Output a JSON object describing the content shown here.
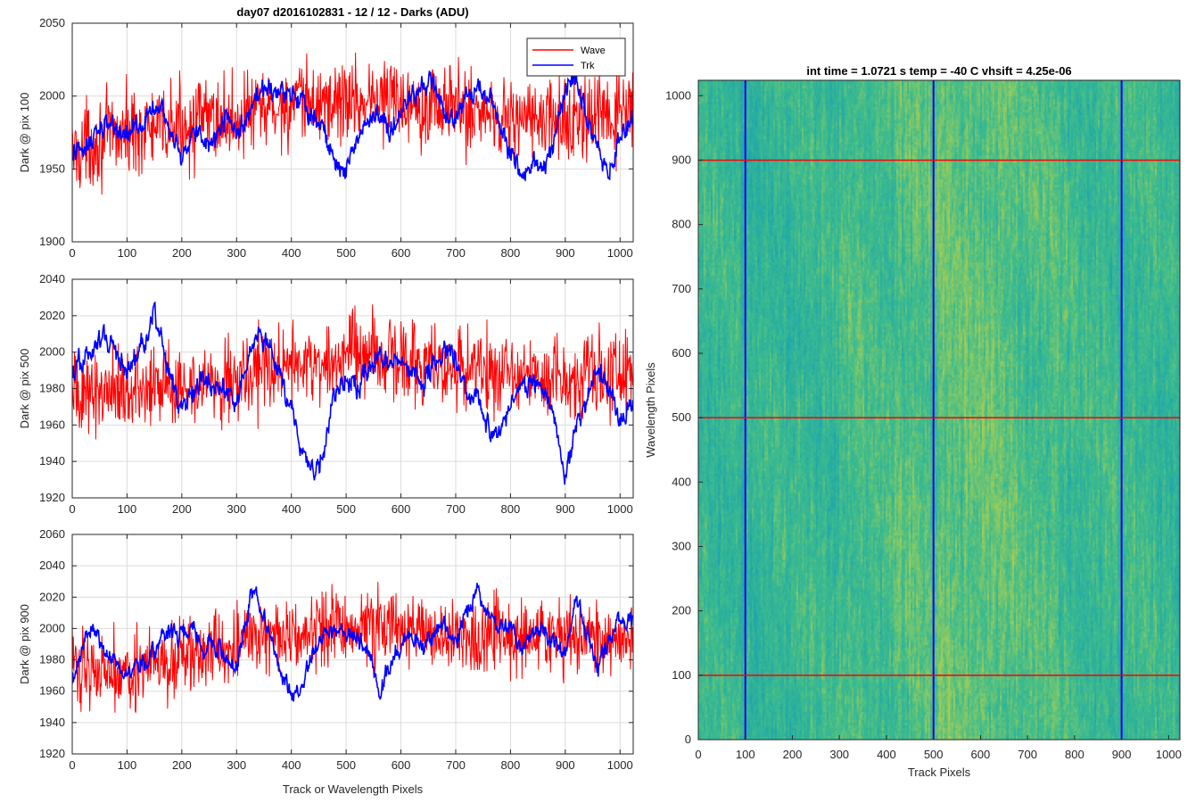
{
  "chart_data": [
    {
      "type": "line",
      "title": "day07 d2016102831 - 12 / 12 - Darks (ADU)",
      "xlabel": "",
      "ylabel": "Dark @ pix 100",
      "xlim": [
        0,
        1024
      ],
      "ylim": [
        1900,
        2050
      ],
      "xticks": [
        0,
        100,
        200,
        300,
        400,
        500,
        600,
        700,
        800,
        900,
        1000
      ],
      "yticks": [
        1900,
        1950,
        2000,
        2050
      ],
      "grid": true,
      "legend": "top-right",
      "series": [
        {
          "name": "Wave",
          "color": "#ff0000",
          "x": [
            0,
            32,
            64,
            96,
            128,
            160,
            192,
            224,
            256,
            288,
            320,
            352,
            384,
            416,
            448,
            480,
            512,
            544,
            576,
            608,
            640,
            672,
            704,
            736,
            768,
            800,
            832,
            864,
            896,
            928,
            960,
            992,
            1023
          ],
          "y": [
            1960,
            1968,
            1972,
            1975,
            1978,
            1976,
            1980,
            1982,
            1985,
            1983,
            1988,
            1990,
            1992,
            1994,
            1995,
            1996,
            1997,
            1998,
            1998,
            1997,
            1996,
            1994,
            1992,
            1990,
            1988,
            1986,
            1984,
            1983,
            1982,
            1983,
            1984,
            1986,
            1988
          ],
          "spread": 18
        },
        {
          "name": "Trk",
          "color": "#0000ff",
          "x": [
            0,
            20,
            40,
            60,
            80,
            100,
            120,
            140,
            160,
            180,
            200,
            220,
            240,
            260,
            280,
            300,
            320,
            340,
            360,
            380,
            400,
            420,
            440,
            460,
            480,
            490,
            500,
            520,
            540,
            560,
            580,
            600,
            620,
            640,
            660,
            680,
            700,
            720,
            740,
            760,
            780,
            800,
            820,
            840,
            860,
            880,
            900,
            920,
            940,
            960,
            980,
            1000,
            1023
          ],
          "y": [
            1958,
            1965,
            1972,
            1980,
            1977,
            1972,
            1978,
            1990,
            1995,
            1975,
            1960,
            1975,
            1972,
            1968,
            1985,
            1975,
            1985,
            2000,
            2003,
            2002,
            2000,
            1995,
            1985,
            1975,
            1960,
            1945,
            1950,
            1970,
            1985,
            1985,
            1978,
            1990,
            2000,
            2010,
            2005,
            1990,
            1985,
            2000,
            2003,
            2005,
            1982,
            1960,
            1945,
            1955,
            1950,
            1970,
            2003,
            2012,
            1985,
            1965,
            1945,
            1975,
            1982
          ],
          "spread": 6
        }
      ]
    },
    {
      "type": "line",
      "title": "",
      "xlabel": "",
      "ylabel": "Dark @ pix 500",
      "xlim": [
        0,
        1024
      ],
      "ylim": [
        1920,
        2040
      ],
      "xticks": [
        0,
        100,
        200,
        300,
        400,
        500,
        600,
        700,
        800,
        900,
        1000
      ],
      "yticks": [
        1920,
        1940,
        1960,
        1980,
        2000,
        2020,
        2040
      ],
      "grid": true,
      "series": [
        {
          "name": "",
          "color": "#ff0000",
          "x": [
            0,
            32,
            64,
            96,
            128,
            160,
            192,
            224,
            256,
            288,
            320,
            352,
            384,
            416,
            448,
            480,
            512,
            544,
            576,
            608,
            640,
            672,
            704,
            736,
            768,
            800,
            832,
            864,
            896,
            928,
            960,
            992,
            1023
          ],
          "y": [
            1975,
            1978,
            1980,
            1982,
            1978,
            1980,
            1983,
            1985,
            1984,
            1986,
            1988,
            1990,
            1992,
            1993,
            1995,
            1996,
            1997,
            1998,
            1996,
            1995,
            1994,
            1993,
            1992,
            1991,
            1990,
            1989,
            1988,
            1988,
            1987,
            1988,
            1989,
            1990,
            1991
          ],
          "spread": 14
        },
        {
          "name": "",
          "color": "#0000ff",
          "x": [
            0,
            20,
            40,
            60,
            80,
            100,
            120,
            140,
            150,
            160,
            180,
            200,
            220,
            240,
            260,
            280,
            300,
            320,
            340,
            360,
            380,
            400,
            420,
            440,
            460,
            480,
            500,
            520,
            540,
            560,
            580,
            600,
            620,
            640,
            660,
            680,
            700,
            720,
            740,
            760,
            780,
            800,
            820,
            840,
            860,
            880,
            900,
            920,
            940,
            960,
            980,
            1000,
            1023
          ],
          "y": [
            1990,
            1995,
            2003,
            2008,
            2000,
            1992,
            1998,
            2010,
            2022,
            2010,
            1985,
            1970,
            1975,
            1988,
            1978,
            1980,
            1970,
            1995,
            2012,
            2000,
            1985,
            1970,
            1945,
            1932,
            1948,
            1975,
            1985,
            1980,
            1990,
            2000,
            1995,
            1998,
            1992,
            1980,
            1995,
            2000,
            1998,
            1972,
            1975,
            1960,
            1955,
            1972,
            1980,
            1985,
            1978,
            1965,
            1935,
            1955,
            1975,
            1990,
            1980,
            1960,
            1975
          ],
          "spread": 5
        }
      ]
    },
    {
      "type": "line",
      "title": "",
      "xlabel": "Track or Wavelength Pixels",
      "ylabel": "Dark @ pix 900",
      "xlim": [
        0,
        1024
      ],
      "ylim": [
        1920,
        2060
      ],
      "xticks": [
        0,
        100,
        200,
        300,
        400,
        500,
        600,
        700,
        800,
        900,
        1000
      ],
      "yticks": [
        1920,
        1940,
        1960,
        1980,
        2000,
        2020,
        2040,
        2060
      ],
      "grid": true,
      "series": [
        {
          "name": "",
          "color": "#ff0000",
          "x": [
            0,
            32,
            64,
            96,
            128,
            160,
            192,
            224,
            256,
            288,
            320,
            352,
            384,
            416,
            448,
            480,
            512,
            544,
            576,
            608,
            640,
            672,
            704,
            736,
            768,
            800,
            832,
            864,
            896,
            928,
            960,
            992,
            1023
          ],
          "y": [
            1978,
            1976,
            1975,
            1974,
            1975,
            1977,
            1979,
            1982,
            1985,
            1988,
            1992,
            1995,
            1997,
            1998,
            1999,
            2000,
            2001,
            2002,
            2001,
            2000,
            1999,
            1998,
            1997,
            1996,
            1995,
            1994,
            1993,
            1992,
            1992,
            1993,
            1994,
            1995,
            1996
          ],
          "spread": 15
        },
        {
          "name": "",
          "color": "#0000ff",
          "x": [
            0,
            20,
            40,
            60,
            80,
            100,
            120,
            140,
            160,
            180,
            200,
            220,
            240,
            260,
            280,
            300,
            320,
            330,
            340,
            360,
            380,
            400,
            420,
            440,
            460,
            480,
            500,
            520,
            540,
            560,
            580,
            600,
            620,
            640,
            660,
            680,
            700,
            720,
            740,
            760,
            780,
            800,
            820,
            840,
            860,
            880,
            900,
            920,
            940,
            960,
            980,
            1000,
            1023
          ],
          "y": [
            1965,
            1992,
            2000,
            1985,
            1978,
            1972,
            1975,
            1980,
            1992,
            1998,
            1995,
            2000,
            1985,
            1992,
            1980,
            1975,
            2010,
            2025,
            2020,
            1995,
            1975,
            1955,
            1962,
            1985,
            1995,
            2002,
            1992,
            1995,
            1985,
            1960,
            1975,
            1988,
            1995,
            1985,
            1995,
            2005,
            1990,
            2012,
            2025,
            2010,
            1998,
            2005,
            1985,
            1995,
            2000,
            1990,
            1985,
            2018,
            2000,
            1975,
            1990,
            2005,
            2008
          ],
          "spread": 5
        }
      ]
    },
    {
      "type": "heatmap",
      "title": "int time = 1.0721 s    temp = -40 C    vhsift = 4.25e-06",
      "xlabel": "Track Pixels",
      "ylabel": "Wavelength Pixels",
      "xlim": [
        0,
        1024
      ],
      "ylim": [
        0,
        1024
      ],
      "xticks": [
        0,
        100,
        200,
        300,
        400,
        500,
        600,
        700,
        800,
        900,
        1000
      ],
      "yticks": [
        0,
        100,
        200,
        300,
        400,
        500,
        600,
        700,
        800,
        900,
        1000
      ],
      "colormap": [
        "#1e8ad0",
        "#20a8a8",
        "#3fbc8c",
        "#9ccc5a",
        "#cfc93f"
      ],
      "column_profile": {
        "x": [
          0,
          100,
          200,
          300,
          400,
          500,
          560,
          600,
          700,
          800,
          900,
          1000,
          1023
        ],
        "level": [
          0.42,
          0.4,
          0.43,
          0.46,
          0.52,
          0.57,
          0.6,
          0.58,
          0.52,
          0.47,
          0.45,
          0.43,
          0.4
        ]
      },
      "vertical_lines": {
        "x": [
          100,
          500,
          900
        ],
        "color": "#0000ff"
      },
      "horizontal_lines": {
        "y": [
          100,
          500,
          900
        ],
        "color": "#ff0000"
      }
    }
  ]
}
